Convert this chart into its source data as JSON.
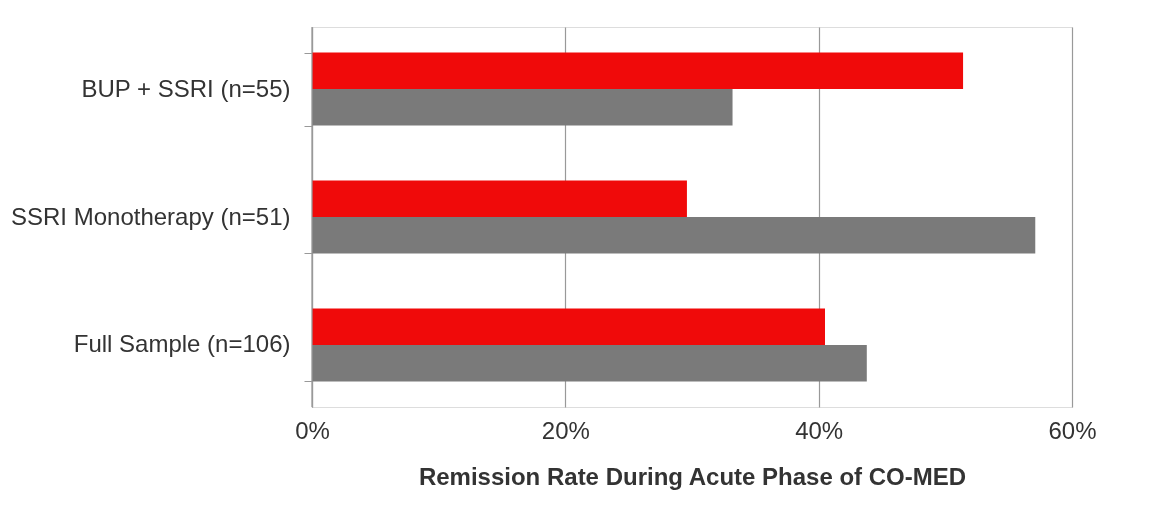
{
  "chart_data": {
    "type": "bar",
    "orientation": "horizontal",
    "categories": [
      "BUP + SSRI (n=55)",
      "SSRI Monotherapy (n=51)",
      "Full Sample (n=106)"
    ],
    "series": [
      {
        "color": "#f00a0a",
        "values": [
          51.4,
          29.6,
          40.5
        ]
      },
      {
        "color": "#7a7a7a",
        "values": [
          33.2,
          57.1,
          43.8
        ]
      }
    ],
    "xlabel": "Remission Rate During Acute Phase of CO-MED",
    "xlim": [
      0,
      60
    ],
    "xticks": [
      {
        "value": 0,
        "label": "0%"
      },
      {
        "value": 20,
        "label": "20%"
      },
      {
        "value": 40,
        "label": "40%"
      },
      {
        "value": 60,
        "label": "60%"
      }
    ],
    "grid": "x",
    "legend": false
  }
}
